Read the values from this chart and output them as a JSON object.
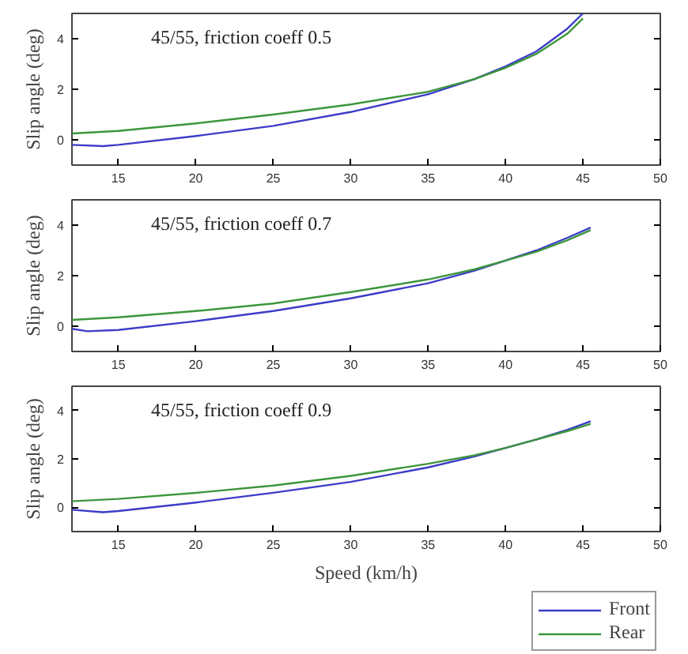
{
  "chart_data": [
    {
      "type": "line",
      "title": "45/55, friction coeff 0.5",
      "ylabel": "Slip angle (deg)",
      "xlim": [
        12,
        50
      ],
      "ylim": [
        -1,
        5
      ],
      "xticks": [
        15,
        20,
        25,
        30,
        35,
        40,
        45,
        50
      ],
      "yticks": [
        0,
        2,
        4
      ],
      "grid": false,
      "series": [
        {
          "color": "#3c3cc8",
          "x": [
            12,
            14,
            15,
            20,
            25,
            30,
            35,
            38,
            40,
            42,
            44,
            45
          ],
          "values": [
            -0.2,
            -0.25,
            -0.2,
            0.15,
            0.55,
            1.1,
            1.8,
            2.4,
            2.9,
            3.5,
            4.4,
            5
          ]
        },
        {
          "color": "#3c963c",
          "x": [
            12,
            15,
            20,
            25,
            30,
            35,
            38,
            40,
            42,
            44,
            45
          ],
          "values": [
            0.25,
            0.35,
            0.65,
            1.0,
            1.4,
            1.9,
            2.4,
            2.85,
            3.4,
            4.2,
            4.8
          ]
        }
      ]
    },
    {
      "type": "line",
      "title": "45/55, friction coeff 0.7",
      "ylabel": "Slip angle (deg)",
      "xlim": [
        12,
        50
      ],
      "ylim": [
        -1,
        5
      ],
      "xticks": [
        15,
        20,
        25,
        30,
        35,
        40,
        45,
        50
      ],
      "yticks": [
        0,
        2,
        4
      ],
      "grid": false,
      "series": [
        {
          "color": "#3c3cc8",
          "x": [
            12,
            13,
            15,
            20,
            25,
            30,
            35,
            38,
            40,
            42,
            44,
            45.5
          ],
          "values": [
            -0.1,
            -0.2,
            -0.15,
            0.2,
            0.6,
            1.1,
            1.7,
            2.2,
            2.6,
            3.0,
            3.5,
            3.9
          ]
        },
        {
          "color": "#3c963c",
          "x": [
            12,
            15,
            20,
            25,
            30,
            35,
            38,
            40,
            42,
            44,
            45.5
          ],
          "values": [
            0.25,
            0.35,
            0.6,
            0.9,
            1.35,
            1.85,
            2.25,
            2.6,
            2.95,
            3.4,
            3.8
          ]
        }
      ]
    },
    {
      "type": "line",
      "title": "45/55, friction coeff 0.9",
      "xlabel": "Speed (km/h)",
      "ylabel": "Slip angle (deg)",
      "xlim": [
        12,
        50
      ],
      "ylim": [
        -1,
        5
      ],
      "xticks": [
        15,
        20,
        25,
        30,
        35,
        40,
        45,
        50
      ],
      "yticks": [
        0,
        2,
        4
      ],
      "grid": false,
      "legend": "bottom right",
      "series": [
        {
          "name": "Front",
          "color": "#3c3cc8",
          "x": [
            12,
            14,
            15,
            20,
            25,
            30,
            35,
            38,
            40,
            42,
            44,
            45.5
          ],
          "values": [
            -0.1,
            -0.2,
            -0.15,
            0.2,
            0.6,
            1.05,
            1.65,
            2.1,
            2.45,
            2.8,
            3.2,
            3.55
          ]
        },
        {
          "name": "Rear",
          "color": "#3c963c",
          "x": [
            12,
            15,
            20,
            25,
            30,
            35,
            38,
            40,
            42,
            44,
            45.5
          ],
          "values": [
            0.25,
            0.35,
            0.6,
            0.9,
            1.3,
            1.8,
            2.15,
            2.45,
            2.8,
            3.15,
            3.45
          ]
        }
      ]
    }
  ]
}
